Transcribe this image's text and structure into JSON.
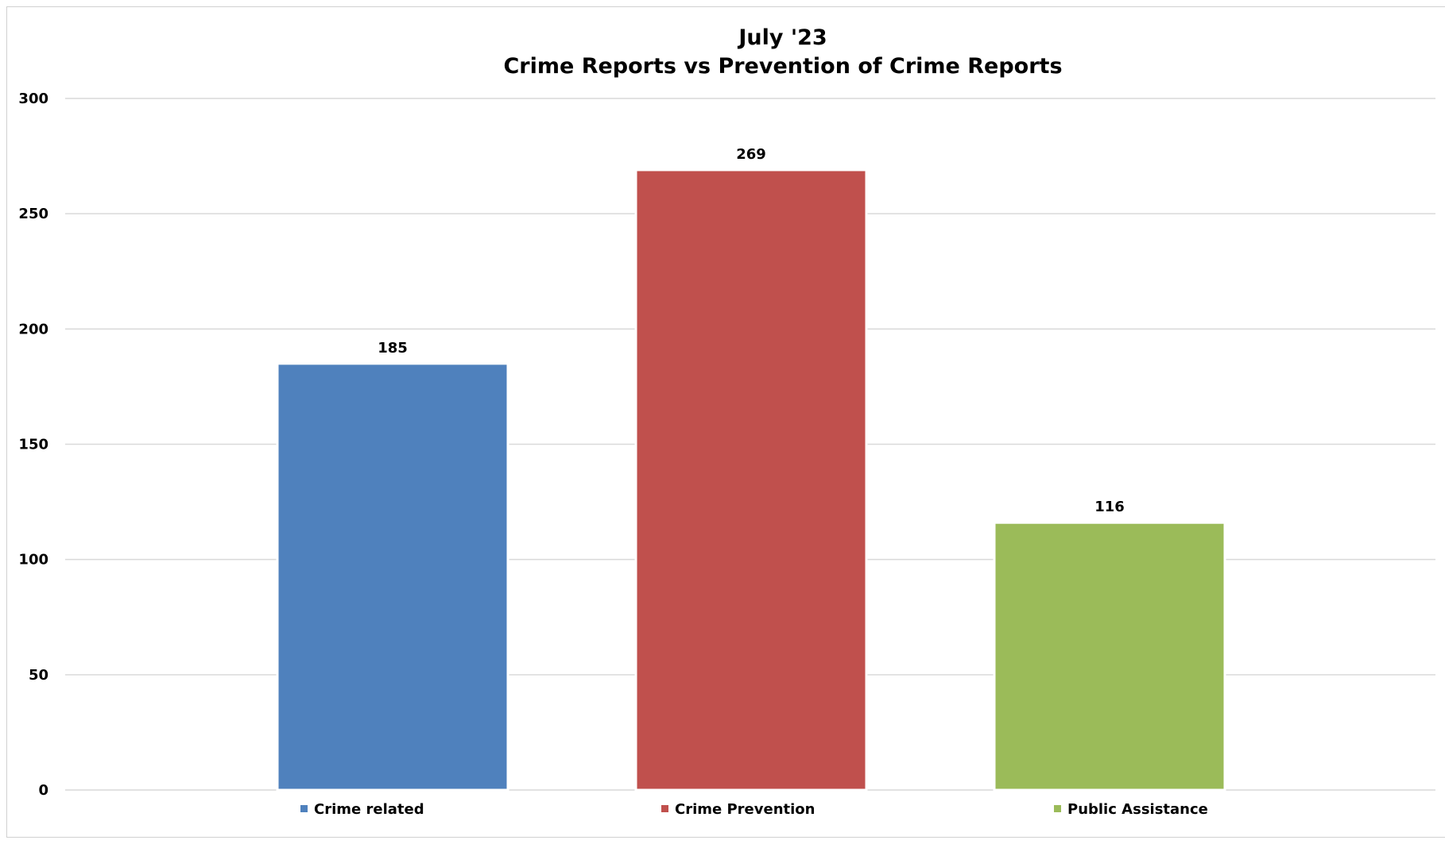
{
  "chart_data": {
    "type": "bar",
    "title": "July '23",
    "subtitle": "Crime Reports vs Prevention of Crime Reports",
    "categories": [
      "Crime related",
      "Crime Prevention",
      "Public Assistance"
    ],
    "values": [
      185,
      269,
      116
    ],
    "colors": [
      "#4F81BD",
      "#C0504D",
      "#9BBB59"
    ],
    "ylim": [
      0,
      300
    ],
    "yticks": [
      0,
      50,
      100,
      150,
      200,
      250,
      300
    ],
    "grid": true,
    "legend_position": "bottom",
    "data_labels": true
  }
}
